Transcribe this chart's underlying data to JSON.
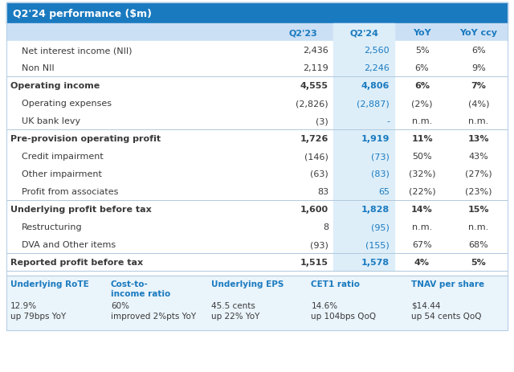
{
  "title": "Q2'24 performance ($m)",
  "header_bg": "#1a7abf",
  "subheader_bg": "#cce0f5",
  "light_col_bg": "#ddeef9",
  "kpi_bg": "#eaf4fb",
  "blue": "#1a7abf",
  "dark_text": "#3a3a3a",
  "col_headers": [
    "",
    "Q2'23",
    "Q2'24",
    "YoY",
    "YoY ccy"
  ],
  "rows": [
    {
      "label": "Net interest income (NII)",
      "q223": "2,436",
      "q224": "2,560",
      "yoy": "5%",
      "yoyccy": "6%",
      "bold": false,
      "indent": true,
      "top_border": false
    },
    {
      "label": "Non NII",
      "q223": "2,119",
      "q224": "2,246",
      "yoy": "6%",
      "yoyccy": "9%",
      "bold": false,
      "indent": true,
      "top_border": false
    },
    {
      "label": "Operating income",
      "q223": "4,555",
      "q224": "4,806",
      "yoy": "6%",
      "yoyccy": "7%",
      "bold": true,
      "indent": false,
      "top_border": true
    },
    {
      "label": "Operating expenses",
      "q223": "(2,826)",
      "q224": "(2,887)",
      "yoy": "(2%)",
      "yoyccy": "(4%)",
      "bold": false,
      "indent": true,
      "top_border": false
    },
    {
      "label": "UK bank levy",
      "q223": "(3)",
      "q224": "-",
      "yoy": "n.m.",
      "yoyccy": "n.m.",
      "bold": false,
      "indent": true,
      "top_border": false
    },
    {
      "label": "Pre-provision operating profit",
      "q223": "1,726",
      "q224": "1,919",
      "yoy": "11%",
      "yoyccy": "13%",
      "bold": true,
      "indent": false,
      "top_border": true
    },
    {
      "label": "Credit impairment",
      "q223": "(146)",
      "q224": "(73)",
      "yoy": "50%",
      "yoyccy": "43%",
      "bold": false,
      "indent": true,
      "top_border": false
    },
    {
      "label": "Other impairment",
      "q223": "(63)",
      "q224": "(83)",
      "yoy": "(32%)",
      "yoyccy": "(27%)",
      "bold": false,
      "indent": true,
      "top_border": false
    },
    {
      "label": "Profit from associates",
      "q223": "83",
      "q224": "65",
      "yoy": "(22%)",
      "yoyccy": "(23%)",
      "bold": false,
      "indent": true,
      "top_border": false
    },
    {
      "label": "Underlying profit before tax",
      "q223": "1,600",
      "q224": "1,828",
      "yoy": "14%",
      "yoyccy": "15%",
      "bold": true,
      "indent": false,
      "top_border": true
    },
    {
      "label": "Restructuring",
      "q223": "8",
      "q224": "(95)",
      "yoy": "n.m.",
      "yoyccy": "n.m.",
      "bold": false,
      "indent": true,
      "top_border": false
    },
    {
      "label": "DVA and Other items",
      "q223": "(93)",
      "q224": "(155)",
      "yoy": "67%",
      "yoyccy": "68%",
      "bold": false,
      "indent": true,
      "top_border": false
    },
    {
      "label": "Reported profit before tax",
      "q223": "1,515",
      "q224": "1,578",
      "yoy": "4%",
      "yoyccy": "5%",
      "bold": true,
      "indent": false,
      "top_border": true
    }
  ],
  "kpis": [
    {
      "title": "Underlying RoTE",
      "value": "12.9%",
      "sub": "up 79bps YoY"
    },
    {
      "title": "Cost-to-\nincome ratio",
      "value": "60%",
      "sub": "improved 2%pts YoY"
    },
    {
      "title": "Underlying EPS",
      "value": "45.5 cents",
      "sub": "up 22% YoY"
    },
    {
      "title": "CET1 ratio",
      "value": "14.6%",
      "sub": "up 104bps QoQ"
    },
    {
      "title": "TNAV per share",
      "value": "$14.44",
      "sub": "up 54 cents QoQ"
    }
  ]
}
